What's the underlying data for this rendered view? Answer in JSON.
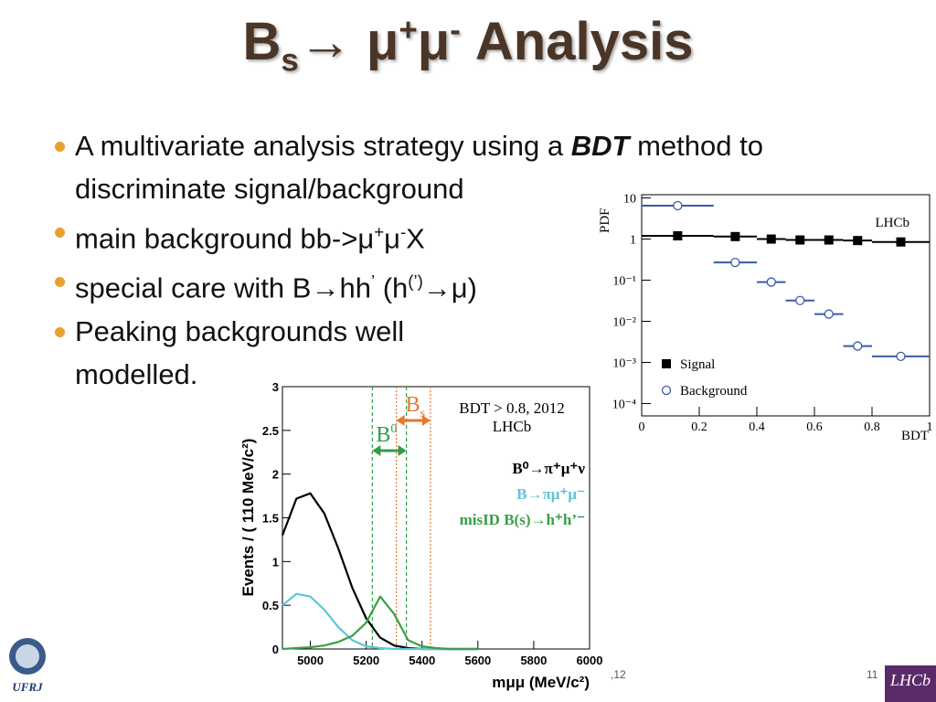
{
  "title": {
    "parts": [
      {
        "text": "B"
      },
      {
        "text": "s",
        "style": "sub"
      },
      {
        "text": "→ μ"
      },
      {
        "text": "+",
        "style": "sup"
      },
      {
        "text": "μ"
      },
      {
        "text": "-",
        "style": "sup"
      },
      {
        "text": "  Analysis"
      }
    ]
  },
  "bullets": [
    {
      "runs": [
        {
          "text": "A multivariate analysis strategy using a "
        },
        {
          "text": "BDT",
          "style": "bold-italic"
        },
        {
          "text": "  method to discriminate signal/background"
        }
      ]
    },
    {
      "runs": [
        {
          "text": " main background bb->μ"
        },
        {
          "text": "+",
          "style": "sup"
        },
        {
          "text": "μ"
        },
        {
          "text": "-",
          "style": "sup"
        },
        {
          "text": "X"
        }
      ]
    },
    {
      "runs": [
        {
          "text": " special care with B"
        },
        {
          "text": "→",
          "style": "bold"
        },
        {
          "text": "hh"
        },
        {
          "text": "’",
          "style": "sup"
        },
        {
          "text": " (h"
        },
        {
          "text": "(’)",
          "style": "sup"
        },
        {
          "text": "→",
          "style": "bold"
        },
        {
          "text": "μ)"
        }
      ]
    },
    {
      "runs": [
        {
          "text": "Peaking backgrounds well modelled."
        }
      ]
    }
  ],
  "chart_data": [
    {
      "type": "scatter",
      "ylabel": "PDF",
      "xlabel": "BDT",
      "annotation": "LHCb",
      "log_y": true,
      "xlim": [
        0,
        1
      ],
      "ylim": [
        5e-05,
        12
      ],
      "xticks": [
        0,
        0.2,
        0.4,
        0.6,
        0.8,
        1
      ],
      "yticks": [
        {
          "value": 0.0001,
          "label": "10⁻⁴"
        },
        {
          "value": 0.001,
          "label": "10⁻³"
        },
        {
          "value": 0.01,
          "label": "10⁻²"
        },
        {
          "value": 0.1,
          "label": "10⁻¹"
        },
        1,
        10
      ],
      "bins": [
        0,
        0.25,
        0.4,
        0.5,
        0.6,
        0.7,
        0.8,
        1
      ],
      "legend": "lower left",
      "series": [
        {
          "name": "Signal",
          "color": "#000000",
          "marker": "square",
          "values": [
            1.2,
            1.15,
            1.0,
            0.95,
            0.95,
            0.92,
            0.85
          ]
        },
        {
          "name": "Background",
          "color": "#3a5aa8",
          "marker": "circle",
          "values": [
            6.5,
            0.27,
            0.09,
            0.032,
            0.015,
            0.0025,
            0.0014
          ]
        }
      ]
    },
    {
      "type": "line",
      "ylabel": "Events / ( 110 MeV/c²)",
      "xlabel": "mμμ (MeV/c²)",
      "annotations": [
        "BDT > 0.8, 2012",
        "LHCb"
      ],
      "xlim": [
        4900,
        6000
      ],
      "ylim": [
        0,
        3
      ],
      "xticks": [
        5000,
        5200,
        5400,
        5600,
        5800,
        6000
      ],
      "yticks": [
        0,
        0.5,
        1,
        1.5,
        2,
        2.5,
        3
      ],
      "legend": "upper right",
      "x": [
        4900,
        4950,
        5000,
        5050,
        5100,
        5150,
        5200,
        5250,
        5300,
        5350,
        5400,
        5450,
        5500,
        5600
      ],
      "series": [
        {
          "name": "B⁰→π⁺μ⁺ν",
          "color": "#000000",
          "values": [
            1.3,
            1.72,
            1.78,
            1.55,
            1.15,
            0.7,
            0.35,
            0.13,
            0.04,
            0.01,
            0,
            0,
            0,
            0
          ]
        },
        {
          "name": "B→πμ⁺μ⁻",
          "color": "#5cc6d6",
          "values": [
            0.5,
            0.63,
            0.6,
            0.45,
            0.25,
            0.1,
            0.03,
            0.01,
            0,
            0,
            0,
            0,
            0,
            0
          ]
        },
        {
          "name": "misID B(s)→h⁺h’⁻",
          "color": "#3a9e48",
          "values": [
            0,
            0.01,
            0.02,
            0.04,
            0.08,
            0.15,
            0.3,
            0.6,
            0.4,
            0.1,
            0.03,
            0.01,
            0,
            0
          ]
        }
      ],
      "windows": [
        {
          "label": "B",
          "label_sup": "0",
          "range": [
            5222,
            5344
          ],
          "color": "#2e9e48"
        },
        {
          "label": "B",
          "label_sub": "s",
          "range": [
            5308,
            5430
          ],
          "color": "#e8772e"
        }
      ]
    }
  ],
  "footer": {
    "left": ",12",
    "page": "11",
    "logo_left": "UFRJ",
    "logo_right": "LHCb"
  }
}
